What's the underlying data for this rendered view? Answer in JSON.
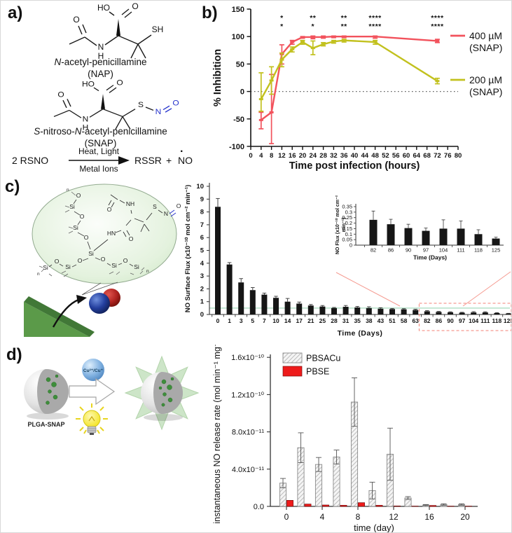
{
  "colors": {
    "series_red": "#f2525c",
    "series_yellow": "#c2c11e",
    "nitroso_blue": "#2633cc",
    "bar_black": "#161616",
    "threshold_green": "#a5dabd",
    "highlight_red": "#f59a90",
    "pbse_red": "#ee1b1b",
    "wedge_green": "#5b9a49",
    "star_green": "#cde5c8"
  },
  "panel_a": {
    "label": "a)",
    "nap": {
      "atoms": {
        "ho": "HO",
        "o_acid": "O",
        "o_acetyl": "O",
        "n": "N",
        "h": "H",
        "sh": "SH"
      },
      "name_p1": "N",
      "name_p2": "-acetyl-penicillamine",
      "abbr": "(NAP)"
    },
    "snap": {
      "atoms": {
        "ho": "HO",
        "o_acid": "O",
        "o_acetyl": "O",
        "n": "N",
        "h": "H",
        "s": "S",
        "n_no": "N",
        "o_no": "O"
      },
      "name_p1": "S",
      "name_p2": "-nitroso-",
      "name_p3": "N",
      "name_p4": "-acetyl-penicillamine",
      "abbr": "(SNAP)"
    },
    "reaction": {
      "lhs": "2 RSNO",
      "above": "Heat, Light",
      "below": "Metal Ions",
      "rssr": "RSSR",
      "plus": "+",
      "no": "NO",
      "dot": "·"
    }
  },
  "panel_b": {
    "label": "b)"
  },
  "panel_c": {
    "label": "c)",
    "diagram": {
      "si": "Si",
      "o": "O",
      "nh": "NH",
      "hn": "HN",
      "s": "S",
      "n": "N",
      "o_no": "O",
      "sub_n": "n"
    }
  },
  "panel_d": {
    "label": "d)",
    "diagram": {
      "particle_label": "PLGA-SNAP",
      "catalyst_label": "Cu²⁺/Cu⁺"
    }
  },
  "chart_data": [
    {
      "id": "panel_b_inhibition",
      "type": "line",
      "xlabel": "Time post infection (hours)",
      "ylabel": "% Inhibition",
      "xlim": [
        0,
        80
      ],
      "ylim": [
        -100,
        150
      ],
      "xtick_step": 4,
      "yticks": [
        -100,
        -50,
        0,
        50,
        100,
        150
      ],
      "zero_line_dotted": true,
      "x": [
        4,
        8,
        12,
        16,
        20,
        24,
        28,
        32,
        36,
        48,
        72
      ],
      "series": [
        {
          "name": "400 µM (SNAP)",
          "legend_line1": "400 µM",
          "legend_line2": "(SNAP)",
          "color": "#f2525c",
          "y": [
            -52,
            -38,
            68,
            90,
            99,
            99,
            99,
            100,
            100,
            100,
            92
          ],
          "lo": [
            -68,
            -95,
            50,
            86,
            97,
            96,
            97,
            98,
            98,
            97,
            89
          ],
          "hi": [
            -38,
            31,
            85,
            93,
            100,
            101,
            101,
            101,
            101,
            101,
            95
          ]
        },
        {
          "name": "200 µM (SNAP)",
          "legend_line1": "200 µM",
          "legend_line2": "(SNAP)",
          "color": "#c2c11e",
          "y": [
            -14,
            20,
            58,
            77,
            90,
            79,
            86,
            91,
            93,
            90,
            19
          ],
          "lo": [
            -36,
            -5,
            45,
            72,
            86,
            67,
            83,
            88,
            90,
            86,
            14
          ],
          "hi": [
            34,
            45,
            70,
            81,
            93,
            92,
            89,
            93,
            95,
            93,
            24
          ]
        }
      ],
      "significance": [
        {
          "x": 12,
          "top": "*",
          "bottom": "*"
        },
        {
          "x": 24,
          "top": "**",
          "bottom": "*"
        },
        {
          "x": 36,
          "top": "**",
          "bottom": "**"
        },
        {
          "x": 48,
          "top": "****",
          "bottom": "****"
        },
        {
          "x": 72,
          "top": "****",
          "bottom": "****"
        }
      ]
    },
    {
      "id": "panel_c_surface_flux",
      "type": "bar",
      "ylabel": "NO Surface Flux (x10⁻¹⁰ mol cm⁻² min⁻¹)",
      "xlabel": "Time (Days)",
      "ylim": [
        0,
        10
      ],
      "yticks": [
        0,
        1,
        2,
        3,
        4,
        5,
        6,
        7,
        8,
        9,
        10
      ],
      "categories": [
        "0",
        "1",
        "3",
        "5",
        "7",
        "10",
        "14",
        "17",
        "21",
        "25",
        "28",
        "31",
        "35",
        "38",
        "43",
        "51",
        "58",
        "63",
        "82",
        "86",
        "90",
        "97",
        "104",
        "111",
        "118",
        "125"
      ],
      "values": [
        8.4,
        3.9,
        2.5,
        1.9,
        1.55,
        1.3,
        1.0,
        0.85,
        0.7,
        0.62,
        0.5,
        0.6,
        0.55,
        0.5,
        0.45,
        0.42,
        0.4,
        0.35,
        0.25,
        0.2,
        0.17,
        0.14,
        0.16,
        0.16,
        0.11,
        0.07
      ],
      "errors": [
        0.65,
        0.15,
        0.3,
        0.2,
        0.12,
        0.12,
        0.25,
        0.12,
        0.08,
        0.08,
        0.05,
        0.1,
        0.08,
        0.1,
        0.08,
        0.05,
        0.05,
        0.06,
        0.05,
        0.04,
        0.04,
        0.03,
        0.06,
        0.05,
        0.03,
        0.02
      ],
      "threshold_line_y": 0.5,
      "highlight_from_index": 18
    },
    {
      "id": "panel_c_inset_flux",
      "type": "bar",
      "ylabel_line1": "NO Flux (x10⁻¹⁰ mol cm⁻²",
      "ylabel_line2": "min⁻¹)",
      "xlabel": "Time (Days)",
      "ylim": [
        0,
        0.35
      ],
      "yticks": [
        0,
        0.05,
        0.1,
        0.15,
        0.2,
        0.25,
        0.3,
        0.35
      ],
      "categories": [
        "82",
        "86",
        "90",
        "97",
        "104",
        "111",
        "118",
        "125"
      ],
      "values": [
        0.23,
        0.19,
        0.155,
        0.13,
        0.15,
        0.15,
        0.1,
        0.06
      ],
      "errors": [
        0.08,
        0.045,
        0.035,
        0.025,
        0.08,
        0.07,
        0.04,
        0.012
      ]
    },
    {
      "id": "panel_d_release",
      "type": "bar",
      "ylabel": "instantaneous NO release rate (mol min⁻¹ mg⁻¹)",
      "xlabel": "time (day)",
      "value_unit": "x10⁻¹¹",
      "ylim": [
        0,
        16
      ],
      "yticks": [
        0,
        4,
        8,
        12,
        16
      ],
      "ytick_labels": [
        "0.0",
        "4.0x10⁻¹¹",
        "8.0x10⁻¹¹",
        "1.2x10⁻¹⁰",
        "1.6x10⁻¹⁰"
      ],
      "xticks": [
        0,
        4,
        8,
        12,
        16,
        20
      ],
      "days": [
        0,
        2,
        4,
        6,
        8,
        10,
        12,
        14,
        16,
        18,
        20
      ],
      "series": [
        {
          "name": "PBSACu",
          "style": "hatched",
          "values": [
            2.5,
            6.3,
            4.5,
            5.3,
            11.2,
            1.7,
            5.6,
            0.9,
            0.15,
            0.2,
            0.2
          ],
          "errors": [
            0.5,
            1.6,
            0.75,
            0.75,
            2.6,
            0.9,
            2.8,
            0.15,
            0.05,
            0.08,
            0.08
          ]
        },
        {
          "name": "PBSE",
          "style": "solid",
          "color": "#ee1b1b",
          "values": [
            0.65,
            0.25,
            0.15,
            0.12,
            0.4,
            0.12,
            0.05,
            0.03,
            0.1,
            0.03,
            0.03
          ],
          "errors": [
            0,
            0,
            0,
            0,
            0,
            0,
            0,
            0,
            0,
            0,
            0
          ]
        }
      ]
    }
  ]
}
